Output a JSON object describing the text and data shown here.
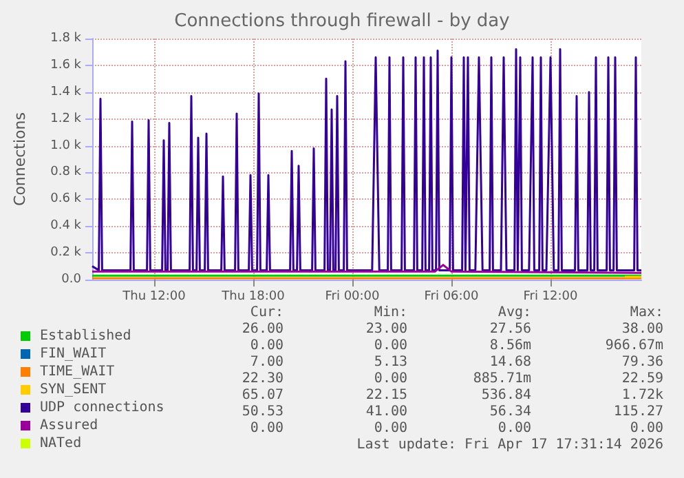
{
  "chart_data": {
    "type": "line",
    "title": "Connections through firewall - by day",
    "ylabel": "Connections",
    "xlim": [
      "2026-04-16T08:15",
      "2026-04-17T17:30"
    ],
    "xticks": [
      {
        "value": "2026-04-16T12:00",
        "label": "Thu 12:00"
      },
      {
        "value": "2026-04-16T18:00",
        "label": "Thu 18:00"
      },
      {
        "value": "2026-04-17T00:00",
        "label": "Fri 00:00"
      },
      {
        "value": "2026-04-17T06:00",
        "label": "Fri 06:00"
      },
      {
        "value": "2026-04-17T12:00",
        "label": "Fri 12:00"
      }
    ],
    "ylim": [
      0,
      1800
    ],
    "yticks": [
      {
        "value": 0,
        "label": "0.0"
      },
      {
        "value": 200,
        "label": "0.2 k"
      },
      {
        "value": 400,
        "label": "0.4 k"
      },
      {
        "value": 600,
        "label": "0.6 k"
      },
      {
        "value": 800,
        "label": "0.8 k"
      },
      {
        "value": 1000,
        "label": "1.0 k"
      },
      {
        "value": 1200,
        "label": "1.2 k"
      },
      {
        "value": 1400,
        "label": "1.4 k"
      },
      {
        "value": 1600,
        "label": "1.6 k"
      },
      {
        "value": 1800,
        "label": "1.8 k"
      }
    ],
    "grid": true,
    "legend": "bottom left",
    "marker": "none",
    "line_style": "solid",
    "series": [
      {
        "name": "Established",
        "color": "#00cc00",
        "x": [
          "2026-04-16T08:15",
          "2026-04-17T17:30"
        ],
        "values": [
          30,
          30
        ]
      },
      {
        "name": "FIN_WAIT",
        "color": "#0066b3"
      },
      {
        "name": "TIME_WAIT",
        "color": "#ff8000",
        "x": [
          "2026-04-16T08:15",
          "2026-04-17T17:30"
        ],
        "values": [
          10,
          10
        ]
      },
      {
        "name": "SYN_SENT",
        "color": "#ffcc00",
        "x": [
          "2026-04-17T16:30",
          "2026-04-17T17:30"
        ],
        "values": [
          20,
          20
        ]
      },
      {
        "name": "UDP connections",
        "color": "#330099",
        "x": [
          "2026-04-16T08:15",
          "2026-04-16T08:39",
          "2026-04-16T08:45",
          "2026-04-16T08:51",
          "2026-04-16T10:34",
          "2026-04-16T10:40",
          "2026-04-16T10:46",
          "2026-04-16T11:34",
          "2026-04-16T11:40",
          "2026-04-16T11:46",
          "2026-04-16T12:29",
          "2026-04-16T12:35",
          "2026-04-16T12:41",
          "2026-04-16T12:49",
          "2026-04-16T12:55",
          "2026-04-16T13:01",
          "2026-04-16T14:09",
          "2026-04-16T14:15",
          "2026-04-16T14:21",
          "2026-04-16T14:34",
          "2026-04-16T14:40",
          "2026-04-16T14:46",
          "2026-04-16T15:04",
          "2026-04-16T15:10",
          "2026-04-16T15:16",
          "2026-04-16T16:04",
          "2026-04-16T16:10",
          "2026-04-16T16:16",
          "2026-04-16T16:54",
          "2026-04-16T17:00",
          "2026-04-16T17:06",
          "2026-04-16T17:44",
          "2026-04-16T17:50",
          "2026-04-16T17:56",
          "2026-04-16T18:14",
          "2026-04-16T18:20",
          "2026-04-16T18:26",
          "2026-04-16T18:49",
          "2026-04-16T18:55",
          "2026-04-16T19:01",
          "2026-04-16T20:14",
          "2026-04-16T20:20",
          "2026-04-16T20:26",
          "2026-04-16T20:39",
          "2026-04-16T20:45",
          "2026-04-16T20:51",
          "2026-04-16T21:34",
          "2026-04-16T21:40",
          "2026-04-16T21:46",
          "2026-04-16T22:19",
          "2026-04-16T22:25",
          "2026-04-16T22:31",
          "2026-04-16T22:39",
          "2026-04-16T22:45",
          "2026-04-16T22:51",
          "2026-04-16T22:59",
          "2026-04-16T23:05",
          "2026-04-16T23:11",
          "2026-04-16T23:29",
          "2026-04-16T23:35",
          "2026-04-16T23:41",
          "2026-04-17T01:12",
          "2026-04-17T01:25",
          "2026-04-17T01:38",
          "2026-04-17T02:09",
          "2026-04-17T02:15",
          "2026-04-17T02:21",
          "2026-04-17T02:59",
          "2026-04-17T03:05",
          "2026-04-17T03:11",
          "2026-04-17T03:44",
          "2026-04-17T03:50",
          "2026-04-17T03:56",
          "2026-04-17T04:14",
          "2026-04-17T04:20",
          "2026-04-17T04:26",
          "2026-04-17T04:39",
          "2026-04-17T04:45",
          "2026-04-17T04:51",
          "2026-04-17T05:04",
          "2026-04-17T05:10",
          "2026-04-17T05:16",
          "2026-04-17T05:54",
          "2026-04-17T06:00",
          "2026-04-17T06:06",
          "2026-04-17T06:39",
          "2026-04-17T06:45",
          "2026-04-17T06:51",
          "2026-04-17T07:00",
          "2026-04-17T07:06",
          "2026-04-17T07:27",
          "2026-04-17T07:40",
          "2026-04-17T07:53",
          "2026-04-17T08:19",
          "2026-04-17T08:25",
          "2026-04-17T08:31",
          "2026-04-17T09:00",
          "2026-04-17T09:10",
          "2026-04-17T09:20",
          "2026-04-17T09:49",
          "2026-04-17T09:55",
          "2026-04-17T10:01",
          "2026-04-17T10:10",
          "2026-04-17T10:16",
          "2026-04-17T10:42",
          "2026-04-17T10:55",
          "2026-04-17T11:01",
          "2026-04-17T11:19",
          "2026-04-17T11:25",
          "2026-04-17T11:31",
          "2026-04-17T11:45",
          "2026-04-17T12:00",
          "2026-04-17T12:12",
          "2026-04-17T12:29",
          "2026-04-17T12:35",
          "2026-04-17T12:41",
          "2026-04-17T13:29",
          "2026-04-17T13:35",
          "2026-04-17T13:41",
          "2026-04-17T14:14",
          "2026-04-17T14:20",
          "2026-04-17T14:26",
          "2026-04-17T14:39",
          "2026-04-17T14:45",
          "2026-04-17T14:51",
          "2026-04-17T15:24",
          "2026-04-17T15:30",
          "2026-04-17T15:36",
          "2026-04-17T15:49",
          "2026-04-17T15:55",
          "2026-04-17T16:01",
          "2026-04-17T17:04",
          "2026-04-17T17:10",
          "2026-04-17T17:16",
          "2026-04-17T17:30"
        ],
        "values": [
          100,
          70,
          1350,
          70,
          70,
          1180,
          70,
          70,
          1190,
          70,
          70,
          1040,
          70,
          70,
          1170,
          70,
          70,
          1370,
          70,
          70,
          1060,
          70,
          70,
          1090,
          70,
          70,
          770,
          70,
          70,
          1240,
          70,
          70,
          780,
          70,
          70,
          1390,
          70,
          70,
          780,
          70,
          70,
          960,
          70,
          70,
          850,
          70,
          70,
          980,
          70,
          70,
          1500,
          70,
          70,
          1270,
          70,
          70,
          1370,
          70,
          70,
          1630,
          70,
          70,
          1660,
          70,
          70,
          1660,
          70,
          70,
          1660,
          70,
          70,
          1660,
          70,
          70,
          1660,
          70,
          70,
          1660,
          70,
          70,
          1710,
          70,
          70,
          1660,
          70,
          70,
          1660,
          70,
          1660,
          70,
          70,
          1660,
          70,
          70,
          1660,
          70,
          70,
          1660,
          70,
          70,
          1720,
          70,
          1660,
          70,
          70,
          1660,
          70,
          70,
          1660,
          70,
          70,
          1660,
          70,
          70,
          1720,
          70,
          70,
          1370,
          70,
          70,
          1400,
          70,
          70,
          1660,
          70,
          70,
          1660,
          70,
          70,
          1660,
          70,
          70,
          1660,
          70,
          70
        ]
      },
      {
        "name": "Assured",
        "color": "#990099",
        "x": [
          "2026-04-16T08:15",
          "2026-04-17T05:00",
          "2026-04-17T05:30",
          "2026-04-17T06:00",
          "2026-04-17T17:30"
        ],
        "values": [
          60,
          60,
          110,
          60,
          50
        ]
      },
      {
        "name": "NATed",
        "color": "#ccff00"
      }
    ],
    "annotations": [
      "Cur:",
      "Min:",
      "Avg:",
      "Max:",
      "26.00",
      "23.00",
      "27.56",
      "38.00",
      "0.00",
      "0.00",
      "8.56m",
      "966.67m",
      "7.00",
      "5.13",
      "14.68",
      "79.36",
      "22.30",
      "0.00",
      "885.71m",
      "22.59",
      "65.07",
      "22.15",
      "536.84",
      "1.72k",
      "50.53",
      "41.00",
      "56.34",
      "115.27",
      "0.00",
      "0.00",
      "0.00",
      "0.00",
      "Last update: Fri Apr 17 17:31:14 2026"
    ]
  }
}
